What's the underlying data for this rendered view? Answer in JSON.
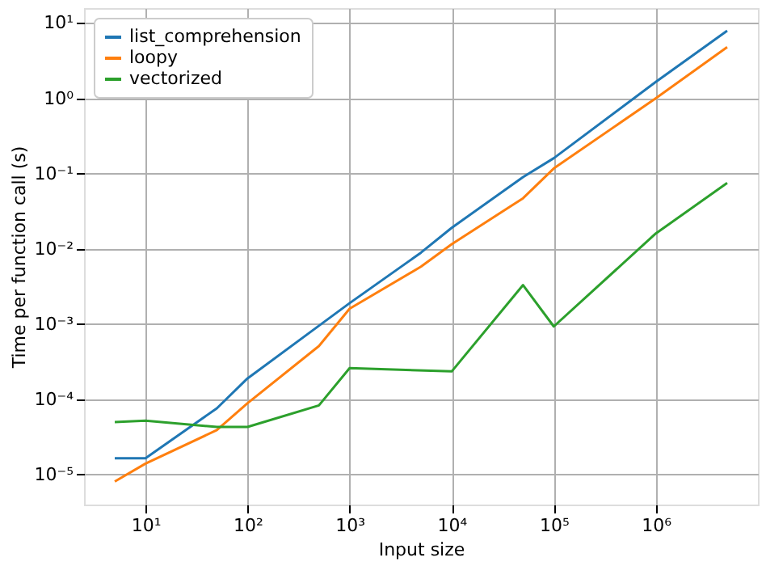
{
  "chart_data": {
    "type": "line",
    "xlabel": "Input size",
    "ylabel": "Time per function call (s)",
    "log": "xy",
    "grid": true,
    "legend": "top left",
    "xlim": [
      2.5,
      10000000
    ],
    "ylim": [
      4e-06,
      15.8
    ],
    "xticks": [
      {
        "value": 10,
        "label": "10¹"
      },
      {
        "value": 100,
        "label": "10²"
      },
      {
        "value": 1000,
        "label": "10³"
      },
      {
        "value": 10000,
        "label": "10⁴"
      },
      {
        "value": 100000,
        "label": "10⁵"
      },
      {
        "value": 1000000,
        "label": "10⁶"
      }
    ],
    "yticks": [
      {
        "value": 1e-05,
        "label": "10⁻⁵"
      },
      {
        "value": 0.0001,
        "label": "10⁻⁴"
      },
      {
        "value": 0.001,
        "label": "10⁻³"
      },
      {
        "value": 0.01,
        "label": "10⁻²"
      },
      {
        "value": 0.1,
        "label": "10⁻¹"
      },
      {
        "value": 1,
        "label": "10⁰"
      },
      {
        "value": 10,
        "label": "10¹"
      }
    ],
    "x": [
      5,
      10,
      50,
      100,
      500,
      1000,
      5000,
      10000,
      50000,
      100000,
      1000000,
      5000000
    ],
    "series": [
      {
        "name": "list_comprehension",
        "color": "#1f77b4",
        "values": [
          1.65e-05,
          1.65e-05,
          7.6e-05,
          0.00019,
          0.00095,
          0.0019,
          0.0089,
          0.019,
          0.09,
          0.16,
          1.65,
          7.9
        ]
      },
      {
        "name": "loopy",
        "color": "#ff7f0e",
        "values": [
          8.1e-06,
          1.4e-05,
          3.9e-05,
          8.9e-05,
          0.00051,
          0.0016,
          0.0058,
          0.0115,
          0.047,
          0.117,
          1.0,
          4.8
        ]
      },
      {
        "name": "vectorized",
        "color": "#2ca02c",
        "x": [
          5,
          10,
          50,
          100,
          500,
          1000,
          10000,
          50000,
          100000,
          1000000,
          5000000
        ],
        "values": [
          5e-05,
          5.2e-05,
          4.3e-05,
          4.3e-05,
          8.3e-05,
          0.00026,
          0.000235,
          0.0033,
          0.00093,
          0.016,
          0.075
        ]
      }
    ]
  }
}
